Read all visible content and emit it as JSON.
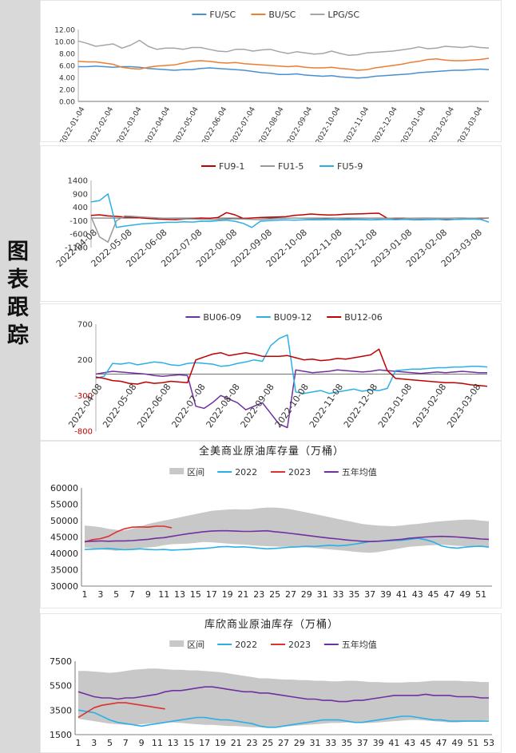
{
  "sidebar": {
    "label": "图表跟踪"
  },
  "chart_data": [
    {
      "id": "ratio",
      "type": "line",
      "title": "",
      "ylim": [
        0,
        12
      ],
      "yticks": [
        "0.00",
        "2.00",
        "4.00",
        "6.00",
        "8.00",
        "10.00",
        "12.00"
      ],
      "xticks": [
        "2022-01-04",
        "2022-02-04",
        "2022-03-04",
        "2022-04-04",
        "2022-05-04",
        "2022-06-04",
        "2022-07-04",
        "2022-08-04",
        "2022-09-04",
        "2022-10-04",
        "2022-11-04",
        "2022-12-04",
        "2023-01-04",
        "2023-02-04",
        "2023-03-04"
      ],
      "legend_position": "top",
      "series": [
        {
          "name": "FU/SC",
          "color": "#4a8fd1",
          "values": [
            5.8,
            5.8,
            5.9,
            5.8,
            5.7,
            5.8,
            5.8,
            5.7,
            5.5,
            5.4,
            5.3,
            5.2,
            5.3,
            5.3,
            5.5,
            5.6,
            5.5,
            5.4,
            5.3,
            5.2,
            5.0,
            4.8,
            4.7,
            4.5,
            4.5,
            4.6,
            4.4,
            4.3,
            4.2,
            4.3,
            4.1,
            4.0,
            3.9,
            4.0,
            4.2,
            4.3,
            4.4,
            4.5,
            4.6,
            4.8,
            4.9,
            5.0,
            5.1,
            5.2,
            5.2,
            5.3,
            5.4,
            5.3
          ]
        },
        {
          "name": "BU/SC",
          "color": "#ed7d31",
          "values": [
            6.7,
            6.6,
            6.6,
            6.4,
            6.2,
            5.7,
            5.5,
            5.4,
            5.7,
            5.9,
            6.0,
            6.1,
            6.4,
            6.7,
            6.8,
            6.7,
            6.5,
            6.4,
            6.5,
            6.3,
            6.2,
            6.1,
            6.0,
            5.9,
            5.8,
            5.9,
            5.7,
            5.6,
            5.6,
            5.7,
            5.5,
            5.4,
            5.2,
            5.3,
            5.6,
            5.8,
            6.0,
            6.2,
            6.5,
            6.7,
            7.0,
            7.1,
            6.9,
            6.8,
            6.8,
            6.9,
            7.0,
            7.2
          ]
        },
        {
          "name": "LPG/SC",
          "color": "#a5a5a5",
          "values": [
            10.1,
            9.7,
            9.2,
            9.4,
            9.6,
            8.9,
            9.4,
            10.2,
            9.2,
            8.7,
            8.9,
            8.9,
            8.7,
            9.0,
            9.0,
            8.7,
            8.4,
            8.3,
            8.7,
            8.7,
            8.4,
            8.6,
            8.7,
            8.3,
            8.0,
            8.3,
            8.1,
            7.9,
            8.0,
            8.4,
            8.0,
            7.7,
            7.8,
            8.1,
            8.2,
            8.3,
            8.4,
            8.6,
            8.8,
            9.1,
            8.8,
            8.9,
            9.2,
            9.1,
            9.0,
            9.2,
            9.0,
            8.9
          ]
        }
      ]
    },
    {
      "id": "fu-spread",
      "type": "line",
      "title": "",
      "ylim": [
        -1100,
        1400
      ],
      "yticks": [
        "-1100",
        "-600",
        "-100",
        "400",
        "900",
        "1400"
      ],
      "xticks": [
        "2022-04-08",
        "2022-05-08",
        "2022-06-08",
        "2022-07-08",
        "2022-08-08",
        "2022-09-08",
        "2022-10-08",
        "2022-11-08",
        "2022-12-08",
        "2023-01-08",
        "2023-02-08",
        "2023-03-08"
      ],
      "legend_position": "top",
      "series": [
        {
          "name": "FU9-1",
          "color": "#c00000",
          "values": [
            100,
            120,
            80,
            60,
            40,
            30,
            0,
            -20,
            -40,
            -50,
            -60,
            -40,
            -20,
            0,
            -10,
            20,
            200,
            120,
            -20,
            0,
            20,
            30,
            40,
            50,
            100,
            120,
            150,
            130,
            110,
            120,
            140,
            150,
            160,
            170,
            180,
            -10,
            -20,
            -40,
            -60,
            -60,
            -50,
            -50,
            -60,
            -50,
            -40,
            -40,
            -20,
            0
          ]
        },
        {
          "name": "FU1-5",
          "color": "#999999",
          "values": [
            50,
            -700,
            -900,
            -100,
            80,
            60,
            40,
            20,
            0,
            -10,
            -20,
            -30,
            -40,
            -50,
            -60,
            -50,
            -40,
            -30,
            -40,
            -50,
            -60,
            -40,
            -20,
            -10,
            0,
            -10,
            -20,
            -30,
            -40,
            -50,
            -40,
            -30,
            -20,
            -10,
            -20,
            -10,
            0,
            0,
            -10,
            -20,
            -20,
            -10,
            -10,
            0,
            0,
            -10,
            0,
            0
          ]
        },
        {
          "name": "FU5-9",
          "color": "#2ab0e6",
          "values": [
            600,
            650,
            900,
            -350,
            -300,
            -260,
            -220,
            -200,
            -180,
            -160,
            -160,
            -140,
            -150,
            -120,
            -130,
            -100,
            -80,
            -120,
            -200,
            -350,
            -120,
            -100,
            -80,
            -70,
            -80,
            -70,
            -60,
            -70,
            -60,
            -60,
            -70,
            -60,
            -60,
            -70,
            -60,
            -50,
            -60,
            -50,
            -60,
            -50,
            -60,
            -50,
            -40,
            -50,
            -40,
            -40,
            -50,
            -150
          ]
        }
      ]
    },
    {
      "id": "bu-spread",
      "type": "line",
      "title": "",
      "ylim": [
        -800,
        700
      ],
      "yticks": [
        "-800",
        "-300",
        "200",
        "700"
      ],
      "xticks": [
        "2022-04-08",
        "2022-05-08",
        "2022-06-08",
        "2022-07-08",
        "2022-08-08",
        "2022-09-08",
        "2022-10-08",
        "2022-11-08",
        "2022-12-08",
        "2023-01-08",
        "2023-02-08",
        "2023-03-08"
      ],
      "legend_position": "top",
      "series": [
        {
          "name": "BU06-09",
          "color": "#7030a0",
          "values": [
            0,
            20,
            40,
            30,
            20,
            10,
            0,
            -20,
            -30,
            -20,
            -10,
            -20,
            -450,
            -480,
            -400,
            -300,
            -350,
            -400,
            -500,
            -450,
            -400,
            -550,
            -700,
            -750,
            60,
            40,
            20,
            30,
            40,
            60,
            50,
            40,
            30,
            40,
            60,
            50,
            40,
            30,
            20,
            10,
            20,
            30,
            20,
            30,
            40,
            30,
            20,
            20
          ]
        },
        {
          "name": "BU09-12",
          "color": "#2ab0e6",
          "values": [
            -60,
            -30,
            150,
            140,
            160,
            130,
            150,
            170,
            160,
            130,
            120,
            150,
            160,
            150,
            140,
            110,
            120,
            150,
            170,
            200,
            180,
            400,
            500,
            550,
            -250,
            -270,
            -250,
            -230,
            -270,
            -250,
            -230,
            -210,
            -240,
            -220,
            -230,
            -200,
            50,
            60,
            70,
            70,
            80,
            90,
            90,
            100,
            100,
            110,
            110,
            100
          ]
        },
        {
          "name": "BU12-06",
          "color": "#c00000",
          "values": [
            -40,
            -60,
            -90,
            -100,
            -130,
            -140,
            -110,
            -130,
            -120,
            -100,
            -110,
            -120,
            200,
            240,
            280,
            300,
            260,
            280,
            300,
            280,
            250,
            250,
            250,
            260,
            230,
            200,
            210,
            190,
            200,
            220,
            210,
            230,
            250,
            270,
            350,
            50,
            -60,
            -70,
            -80,
            -90,
            -100,
            -110,
            -120,
            -120,
            -130,
            -150,
            -160,
            -170
          ]
        }
      ]
    },
    {
      "id": "us-crude",
      "type": "area",
      "title": "全美商业原油库存量（万桶）",
      "ylim": [
        30000,
        60000
      ],
      "yticks": [
        "30000",
        "35000",
        "40000",
        "45000",
        "50000",
        "55000",
        "60000"
      ],
      "xticks": [
        "1",
        "3",
        "5",
        "7",
        "9",
        "11",
        "13",
        "15",
        "17",
        "19",
        "21",
        "23",
        "25",
        "27",
        "29",
        "31",
        "33",
        "35",
        "37",
        "39",
        "41",
        "43",
        "45",
        "47",
        "49",
        "51"
      ],
      "weeks": 52,
      "legend_position": "top",
      "band_name": "区间",
      "band_color": "#c8c8c8",
      "band_low": [
        41800,
        41500,
        41200,
        41000,
        40800,
        41000,
        41300,
        41600,
        41800,
        42000,
        42500,
        42800,
        42900,
        43000,
        43200,
        43500,
        43400,
        43200,
        43000,
        42800,
        42700,
        42500,
        42300,
        42200,
        42100,
        42000,
        42000,
        41900,
        41800,
        41600,
        41400,
        41200,
        41000,
        40800,
        40500,
        40300,
        40200,
        40400,
        40800,
        41200,
        41600,
        42000,
        42200,
        42400,
        42500,
        42600,
        42500,
        42300,
        42200,
        42000,
        41900,
        41800
      ],
      "band_high": [
        48500,
        48300,
        48000,
        47500,
        47200,
        47000,
        47500,
        48200,
        49000,
        49500,
        50000,
        50500,
        51000,
        51500,
        52000,
        52500,
        53000,
        53200,
        53400,
        53500,
        53400,
        53500,
        53800,
        54000,
        54000,
        53800,
        53500,
        53000,
        52500,
        52000,
        51500,
        51000,
        50500,
        50000,
        49500,
        49000,
        48700,
        48500,
        48400,
        48300,
        48500,
        48800,
        49000,
        49300,
        49600,
        49800,
        50000,
        50200,
        50300,
        50300,
        50000,
        49800
      ],
      "series": [
        {
          "name": "2022",
          "color": "#2ab0e6",
          "values": [
            41200,
            41300,
            41400,
            41500,
            41300,
            41100,
            41200,
            41400,
            41200,
            41100,
            41200,
            41000,
            41100,
            41200,
            41400,
            41500,
            41700,
            42000,
            42100,
            41900,
            42000,
            41800,
            41600,
            41400,
            41500,
            41700,
            41900,
            42000,
            42200,
            42100,
            42300,
            42500,
            42300,
            42500,
            42800,
            43200,
            43600,
            43700,
            43800,
            43900,
            44000,
            44300,
            44600,
            44200,
            43500,
            42300,
            41800,
            41600,
            41900,
            42100,
            42200,
            41900
          ]
        },
        {
          "name": "2023",
          "color": "#e03030",
          "values": [
            43500,
            44200,
            44500,
            45200,
            46500,
            47500,
            48000,
            48100,
            48000,
            48300,
            48300,
            47800
          ]
        },
        {
          "name": "五年均值",
          "color": "#7030a0",
          "values": [
            43600,
            43700,
            43800,
            43700,
            43800,
            43800,
            43900,
            44100,
            44300,
            44600,
            44800,
            45200,
            45600,
            46000,
            46300,
            46600,
            46800,
            46900,
            46900,
            46800,
            46700,
            46700,
            46800,
            46900,
            46600,
            46400,
            46100,
            45800,
            45500,
            45200,
            44900,
            44600,
            44400,
            44100,
            43900,
            43700,
            43600,
            43700,
            43900,
            44100,
            44300,
            44600,
            44800,
            45000,
            45100,
            45200,
            45100,
            45000,
            44800,
            44600,
            44400,
            44300
          ]
        }
      ]
    },
    {
      "id": "cushing",
      "type": "area",
      "title": "库欣商业原油库存（万桶）",
      "ylim": [
        1500,
        7500
      ],
      "yticks": [
        "1500",
        "3500",
        "5500",
        "7500"
      ],
      "xticks": [
        "1",
        "3",
        "5",
        "7",
        "9",
        "11",
        "13",
        "15",
        "17",
        "19",
        "21",
        "23",
        "25",
        "27",
        "29",
        "31",
        "33",
        "35",
        "37",
        "39",
        "41",
        "43",
        "45",
        "47",
        "49",
        "51",
        "53"
      ],
      "weeks": 53,
      "legend_position": "top",
      "band_name": "区间",
      "band_color": "#c8c8c8",
      "band_low": [
        2800,
        2700,
        2600,
        2500,
        2400,
        2350,
        2300,
        2300,
        2350,
        2400,
        2450,
        2500,
        2500,
        2450,
        2400,
        2350,
        2300,
        2300,
        2250,
        2200,
        2200,
        2150,
        2100,
        2100,
        2050,
        2100,
        2150,
        2200,
        2250,
        2300,
        2350,
        2400,
        2450,
        2450,
        2500,
        2500,
        2450,
        2450,
        2500,
        2550,
        2600,
        2650,
        2700,
        2700,
        2650,
        2600,
        2550,
        2500,
        2500,
        2550,
        2600,
        2650,
        2700
      ],
      "band_high": [
        6700,
        6700,
        6650,
        6600,
        6550,
        6600,
        6700,
        6800,
        6850,
        6900,
        6900,
        6850,
        6800,
        6800,
        6750,
        6750,
        6700,
        6650,
        6600,
        6500,
        6400,
        6300,
        6200,
        6100,
        6100,
        6050,
        6000,
        6000,
        5950,
        5950,
        5900,
        5900,
        5850,
        5850,
        5900,
        5900,
        5850,
        5800,
        5800,
        5750,
        5750,
        5750,
        5800,
        5800,
        5850,
        5900,
        5900,
        5900,
        5900,
        5850,
        5850,
        5800,
        5800
      ],
      "series": [
        {
          "name": "2022",
          "color": "#2ab0e6",
          "values": [
            3500,
            3400,
            3300,
            3000,
            2700,
            2500,
            2400,
            2300,
            2200,
            2300,
            2400,
            2500,
            2600,
            2700,
            2800,
            2900,
            2900,
            2800,
            2700,
            2700,
            2600,
            2500,
            2400,
            2200,
            2100,
            2100,
            2200,
            2300,
            2400,
            2500,
            2600,
            2700,
            2700,
            2700,
            2600,
            2500,
            2500,
            2600,
            2700,
            2800,
            2900,
            3000,
            3000,
            2900,
            2800,
            2700,
            2700,
            2600,
            2600,
            2600,
            2600,
            2600,
            2600
          ]
        },
        {
          "name": "2023",
          "color": "#e03030",
          "values": [
            2900,
            3300,
            3700,
            3900,
            4000,
            4100,
            4100,
            4000,
            3900,
            3800,
            3700,
            3600
          ]
        },
        {
          "name": "五年均值",
          "color": "#7030a0",
          "values": [
            5000,
            4800,
            4600,
            4500,
            4500,
            4400,
            4500,
            4500,
            4600,
            4700,
            4800,
            5000,
            5100,
            5100,
            5200,
            5300,
            5400,
            5400,
            5300,
            5200,
            5100,
            5000,
            5000,
            4900,
            4900,
            4800,
            4700,
            4600,
            4500,
            4400,
            4400,
            4300,
            4300,
            4200,
            4200,
            4300,
            4300,
            4400,
            4500,
            4600,
            4700,
            4700,
            4700,
            4700,
            4800,
            4700,
            4700,
            4700,
            4600,
            4600,
            4600,
            4500,
            4500
          ]
        }
      ]
    }
  ]
}
